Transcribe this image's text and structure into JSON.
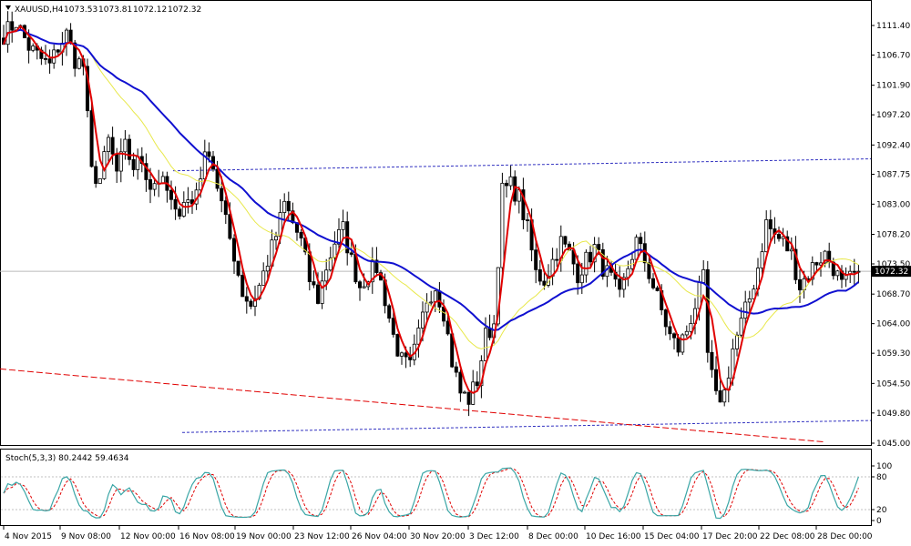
{
  "header": {
    "symbol": "XAUUSD,H4",
    "open": "1073.53",
    "high": "1073.81",
    "low": "1072.12",
    "close": "1072.32"
  },
  "price_axis": {
    "ticks": [
      "1111.40",
      "1106.70",
      "1101.90",
      "1097.20",
      "1092.40",
      "1087.75",
      "1083.00",
      "1078.20",
      "1073.50",
      "1068.70",
      "1064.00",
      "1059.30",
      "1054.50",
      "1049.80",
      "1045.00"
    ],
    "current_label": "1072.32"
  },
  "stoch": {
    "label": "Stoch(5,3,3) 80.2442 59.4634",
    "ticks": [
      "100",
      "80",
      "20",
      "0"
    ],
    "levels": [
      80,
      20
    ]
  },
  "time_axis": {
    "labels": [
      "4 Nov 2015",
      "9 Nov 08:00",
      "12 Nov 00:00",
      "16 Nov 08:00",
      "19 Nov 00:00",
      "23 Nov 12:00",
      "26 Nov 04:00",
      "30 Nov 20:00",
      "3 Dec 12:00",
      "8 Dec 00:00",
      "10 Dec 16:00",
      "15 Dec 04:00",
      "17 Dec 20:00",
      "22 Dec 08:00",
      "28 Dec 00:00"
    ]
  },
  "colors": {
    "candle": "#000000",
    "ma_fast": "#e00000",
    "ma_mid": "#e8e84a",
    "ma_slow": "#1010d0",
    "channel": "#3030c0",
    "trendline": "#e00000",
    "stoch_main": "#3aa6a6",
    "stoch_signal": "#e00000"
  },
  "chart_data": {
    "type": "candlestick",
    "symbol": "XAUUSD,H4",
    "ylim": [
      1045.0,
      1113.0
    ],
    "ticks": [
      1111.4,
      1106.7,
      1101.9,
      1097.2,
      1092.4,
      1087.75,
      1083.0,
      1078.2,
      1073.5,
      1068.7,
      1064.0,
      1059.3,
      1054.5,
      1049.8,
      1045.0
    ],
    "last_price": 1072.32,
    "close_path": [
      [
        0,
        1110
      ],
      [
        3,
        1112
      ],
      [
        6,
        1108
      ],
      [
        9,
        1106
      ],
      [
        11,
        1105
      ],
      [
        13,
        1108
      ],
      [
        15,
        1110
      ],
      [
        17,
        1106
      ],
      [
        19,
        1105
      ],
      [
        21,
        1088
      ],
      [
        23,
        1087
      ],
      [
        25,
        1093
      ],
      [
        27,
        1088
      ],
      [
        29,
        1092
      ],
      [
        31,
        1089
      ],
      [
        33,
        1090
      ],
      [
        35,
        1086
      ],
      [
        37,
        1087
      ],
      [
        39,
        1085
      ],
      [
        41,
        1081
      ],
      [
        43,
        1084
      ],
      [
        45,
        1083
      ],
      [
        47,
        1088
      ],
      [
        49,
        1092
      ],
      [
        51,
        1086
      ],
      [
        53,
        1080
      ],
      [
        55,
        1075
      ],
      [
        57,
        1069
      ],
      [
        59,
        1067
      ],
      [
        61,
        1070
      ],
      [
        63,
        1074
      ],
      [
        65,
        1078
      ],
      [
        67,
        1083
      ],
      [
        69,
        1080
      ],
      [
        71,
        1077
      ],
      [
        73,
        1071
      ],
      [
        75,
        1068
      ],
      [
        77,
        1073
      ],
      [
        79,
        1077
      ],
      [
        81,
        1079
      ],
      [
        83,
        1074
      ],
      [
        85,
        1070
      ],
      [
        87,
        1072
      ],
      [
        89,
        1073
      ],
      [
        91,
        1068
      ],
      [
        93,
        1062
      ],
      [
        95,
        1058
      ],
      [
        97,
        1057
      ],
      [
        99,
        1062
      ],
      [
        101,
        1068
      ],
      [
        103,
        1070
      ],
      [
        105,
        1066
      ],
      [
        107,
        1058
      ],
      [
        109,
        1053
      ],
      [
        111,
        1052
      ],
      [
        113,
        1055
      ],
      [
        115,
        1062
      ],
      [
        117,
        1064
      ],
      [
        119,
        1085
      ],
      [
        121,
        1086
      ],
      [
        123,
        1084
      ],
      [
        125,
        1079
      ],
      [
        127,
        1072
      ],
      [
        129,
        1071
      ],
      [
        131,
        1074
      ],
      [
        133,
        1077
      ],
      [
        135,
        1075
      ],
      [
        137,
        1072
      ],
      [
        139,
        1074
      ],
      [
        141,
        1076
      ],
      [
        143,
        1073
      ],
      [
        145,
        1071
      ],
      [
        147,
        1068
      ],
      [
        149,
        1073
      ],
      [
        151,
        1077
      ],
      [
        153,
        1074
      ],
      [
        155,
        1070
      ],
      [
        157,
        1066
      ],
      [
        159,
        1062
      ],
      [
        161,
        1060
      ],
      [
        163,
        1063
      ],
      [
        165,
        1067
      ],
      [
        167,
        1071
      ],
      [
        168,
        1059
      ],
      [
        170,
        1052
      ],
      [
        172,
        1053
      ],
      [
        174,
        1060
      ],
      [
        176,
        1064
      ],
      [
        178,
        1068
      ],
      [
        180,
        1073
      ],
      [
        182,
        1080
      ],
      [
        184,
        1078
      ],
      [
        186,
        1077
      ],
      [
        188,
        1075
      ],
      [
        190,
        1070
      ],
      [
        192,
        1072
      ],
      [
        194,
        1074
      ],
      [
        196,
        1075
      ],
      [
        198,
        1073
      ],
      [
        200,
        1070
      ],
      [
        202,
        1071
      ],
      [
        204,
        1072.32
      ]
    ],
    "indicators": {
      "ma_fast": "red moving average",
      "ma_mid": "yellow moving average",
      "ma_slow": "blue moving average"
    },
    "stochastic": {
      "k": 5,
      "d": 3,
      "slowing": 3,
      "main": 80.2442,
      "signal": 59.4634,
      "levels": [
        80,
        20
      ],
      "ylim": [
        0,
        100
      ]
    },
    "x_labels": [
      "4 Nov 2015",
      "9 Nov 08:00",
      "12 Nov 00:00",
      "16 Nov 08:00",
      "19 Nov 00:00",
      "23 Nov 12:00",
      "26 Nov 04:00",
      "30 Nov 20:00",
      "3 Dec 12:00",
      "8 Dec 00:00",
      "10 Dec 16:00",
      "15 Dec 04:00",
      "17 Dec 20:00",
      "22 Dec 08:00",
      "28 Dec 00:00"
    ]
  }
}
